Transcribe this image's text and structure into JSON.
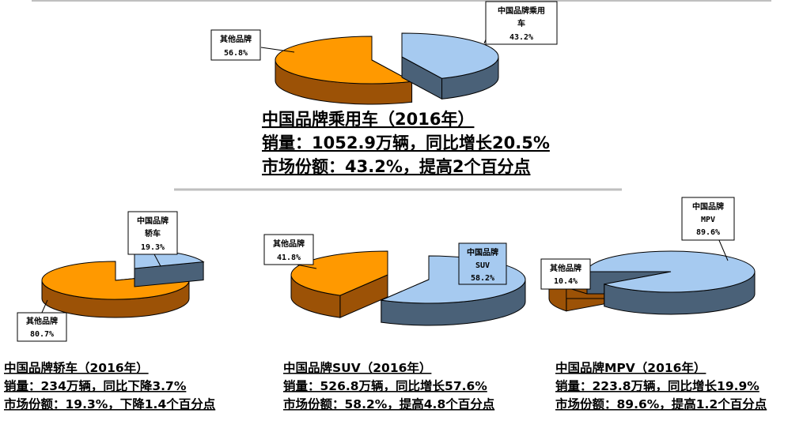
{
  "colors": {
    "china_brand_top": "#A6CAF0",
    "china_brand_side": "#4A6178",
    "other_brand_top": "#FF9900",
    "other_brand_side": "#9C5206",
    "divider": "#BFBFBF"
  },
  "chart_data": [
    {
      "type": "pie",
      "slices": [
        {
          "label": "中国品牌乘用车",
          "value": 43.2,
          "text": "43.2%"
        },
        {
          "label": "其他品牌",
          "value": 56.8,
          "text": "56.8%"
        }
      ],
      "caption": [
        "中国品牌乘用车（2016年）",
        "销量：1052.9万辆，同比增长20.5%",
        "市场份额：43.2%，提高2个百分点"
      ]
    },
    {
      "type": "pie",
      "slices": [
        {
          "label": "中国品牌轿车",
          "value": 19.3,
          "text": "19.3%"
        },
        {
          "label": "其他品牌",
          "value": 80.7,
          "text": "80.7%"
        }
      ],
      "caption": [
        "中国品牌轿车（2016年）",
        "销量：234万辆，同比下降3.7%",
        "市场份额：19.3%，下降1.4个百分点"
      ]
    },
    {
      "type": "pie",
      "slices": [
        {
          "label": "中国品牌SUV",
          "value": 58.2,
          "text": "58.2%"
        },
        {
          "label": "其他品牌",
          "value": 41.8,
          "text": "41.8%"
        }
      ],
      "caption": [
        "中国品牌SUV（2016年）",
        "销量：526.8万辆，同比增长57.6%",
        "市场份额：58.2%，提高4.8个百分点"
      ]
    },
    {
      "type": "pie",
      "slices": [
        {
          "label": "中国品牌MPV",
          "value": 89.6,
          "text": "89.6%"
        },
        {
          "label": "其他品牌",
          "value": 10.4,
          "text": "10.4%"
        }
      ],
      "caption": [
        "中国品牌MPV（2016年）",
        "销量：223.8万辆，同比增长19.9%",
        "市场份额：89.6%，提高1.2个百分点"
      ]
    }
  ],
  "labels": {
    "p0_brand": [
      "中国品牌乘用",
      "车",
      "43.2%"
    ],
    "p0_other": [
      "其他品牌",
      "56.8%"
    ],
    "p1_brand": [
      "中国品牌",
      "轿车",
      "19.3%"
    ],
    "p1_other": [
      "其他品牌",
      "80.7%"
    ],
    "p2_brand": [
      "中国品牌",
      "SUV",
      "58.2%"
    ],
    "p2_other": [
      "其他品牌",
      "41.8%"
    ],
    "p3_brand": [
      "中国品牌",
      "MPV",
      "89.6%"
    ],
    "p3_other": [
      "其他品牌",
      "10.4%"
    ]
  }
}
